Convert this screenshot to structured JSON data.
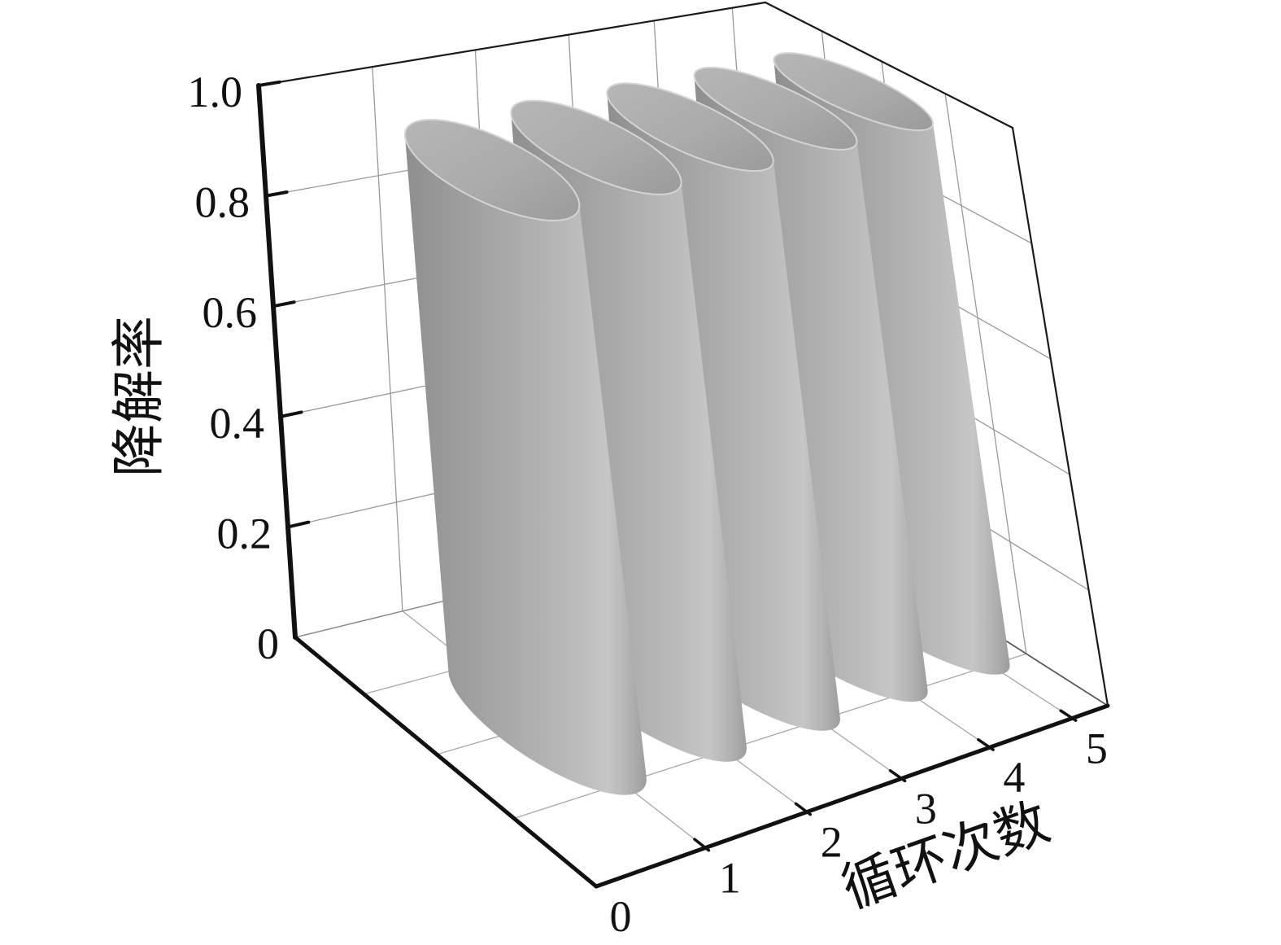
{
  "chart_data": {
    "type": "bar",
    "style": "3d-vertical-cylinder-bars",
    "title": "",
    "xlabel": "循环次数",
    "zlabel": "降解率",
    "categories": [
      1,
      2,
      3,
      4,
      5
    ],
    "values": [
      0.96,
      0.96,
      0.96,
      0.96,
      0.96
    ],
    "x_tick_labels": [
      "0",
      "1",
      "2",
      "3",
      "4",
      "5"
    ],
    "x_tick_values": [
      0,
      1,
      2,
      3,
      4,
      5
    ],
    "z_tick_labels": [
      "0",
      "0.2",
      "0.4",
      "0.6",
      "0.8",
      "1.0"
    ],
    "z_tick_values": [
      0,
      0.2,
      0.4,
      0.6,
      0.8,
      1.0
    ],
    "zlim": [
      0,
      1.0
    ],
    "xlim": [
      0,
      5
    ],
    "grid": true,
    "legend": null,
    "background": "#ffffff",
    "axis_color": "#111111",
    "grid_color": "#9a9a9a",
    "floor_grid_color": "#a8a8a8",
    "bar_color_dark": "#8e8e8e",
    "bar_color_mid": "#aaaaaa",
    "bar_color_light": "#c6c6c6",
    "bar_top_color": "#ababab",
    "bar_rim_color": "#d4d4d4"
  }
}
